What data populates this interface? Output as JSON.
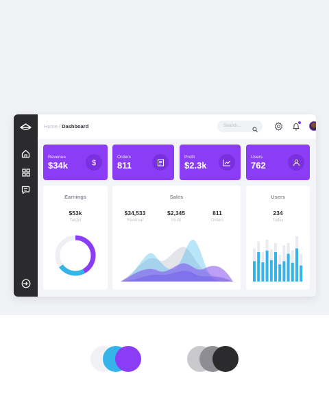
{
  "breadcrumb": {
    "home": "Home",
    "separator": "/",
    "current": "Dashboard"
  },
  "search": {
    "placeholder": "Search..."
  },
  "kpis": [
    {
      "label": "Revenue",
      "value": "$34k",
      "icon": "dollar-icon"
    },
    {
      "label": "Orders",
      "value": "811",
      "icon": "receipt-icon"
    },
    {
      "label": "Profit",
      "value": "$2.3k",
      "icon": "trend-chart-icon"
    },
    {
      "label": "Users",
      "value": "762",
      "icon": "user-icon"
    }
  ],
  "earnings": {
    "title": "Earnings",
    "value": "$53k",
    "label": "Target",
    "donut_progress": 0.65
  },
  "sales": {
    "title": "Sales",
    "stats": [
      {
        "value": "$34,533",
        "label": "Revenue"
      },
      {
        "value": "$2,345",
        "label": "Profit"
      },
      {
        "value": "811",
        "label": "Orders"
      }
    ]
  },
  "users_card": {
    "title": "Users",
    "value": "234",
    "label": "Today",
    "bars": [
      0.38,
      0.55,
      0.36,
      0.58,
      0.4,
      0.55,
      0.32,
      0.38,
      0.52,
      0.35,
      0.62,
      0.3
    ],
    "bg_bars": [
      0.62,
      0.75,
      0.55,
      0.78,
      0.6,
      0.72,
      0.5,
      0.68,
      0.72,
      0.58,
      0.85,
      0.52
    ]
  },
  "colors": {
    "accent": "#8b3df5",
    "accent_dark": "#7a2fe0",
    "blue": "#35b4ea",
    "sidebar": "#2b2b2e",
    "palette": [
      "#f1f2f6",
      "#35b4ea",
      "#8b3df5",
      "#c9c9ce",
      "#8d8d93",
      "#2b2b2e"
    ]
  },
  "icons": {
    "logo": "logo-icon",
    "sidebar": [
      "home-icon",
      "grid-icon",
      "message-icon"
    ],
    "logout": "logout-icon",
    "header": [
      "settings-icon",
      "bell-icon"
    ]
  }
}
